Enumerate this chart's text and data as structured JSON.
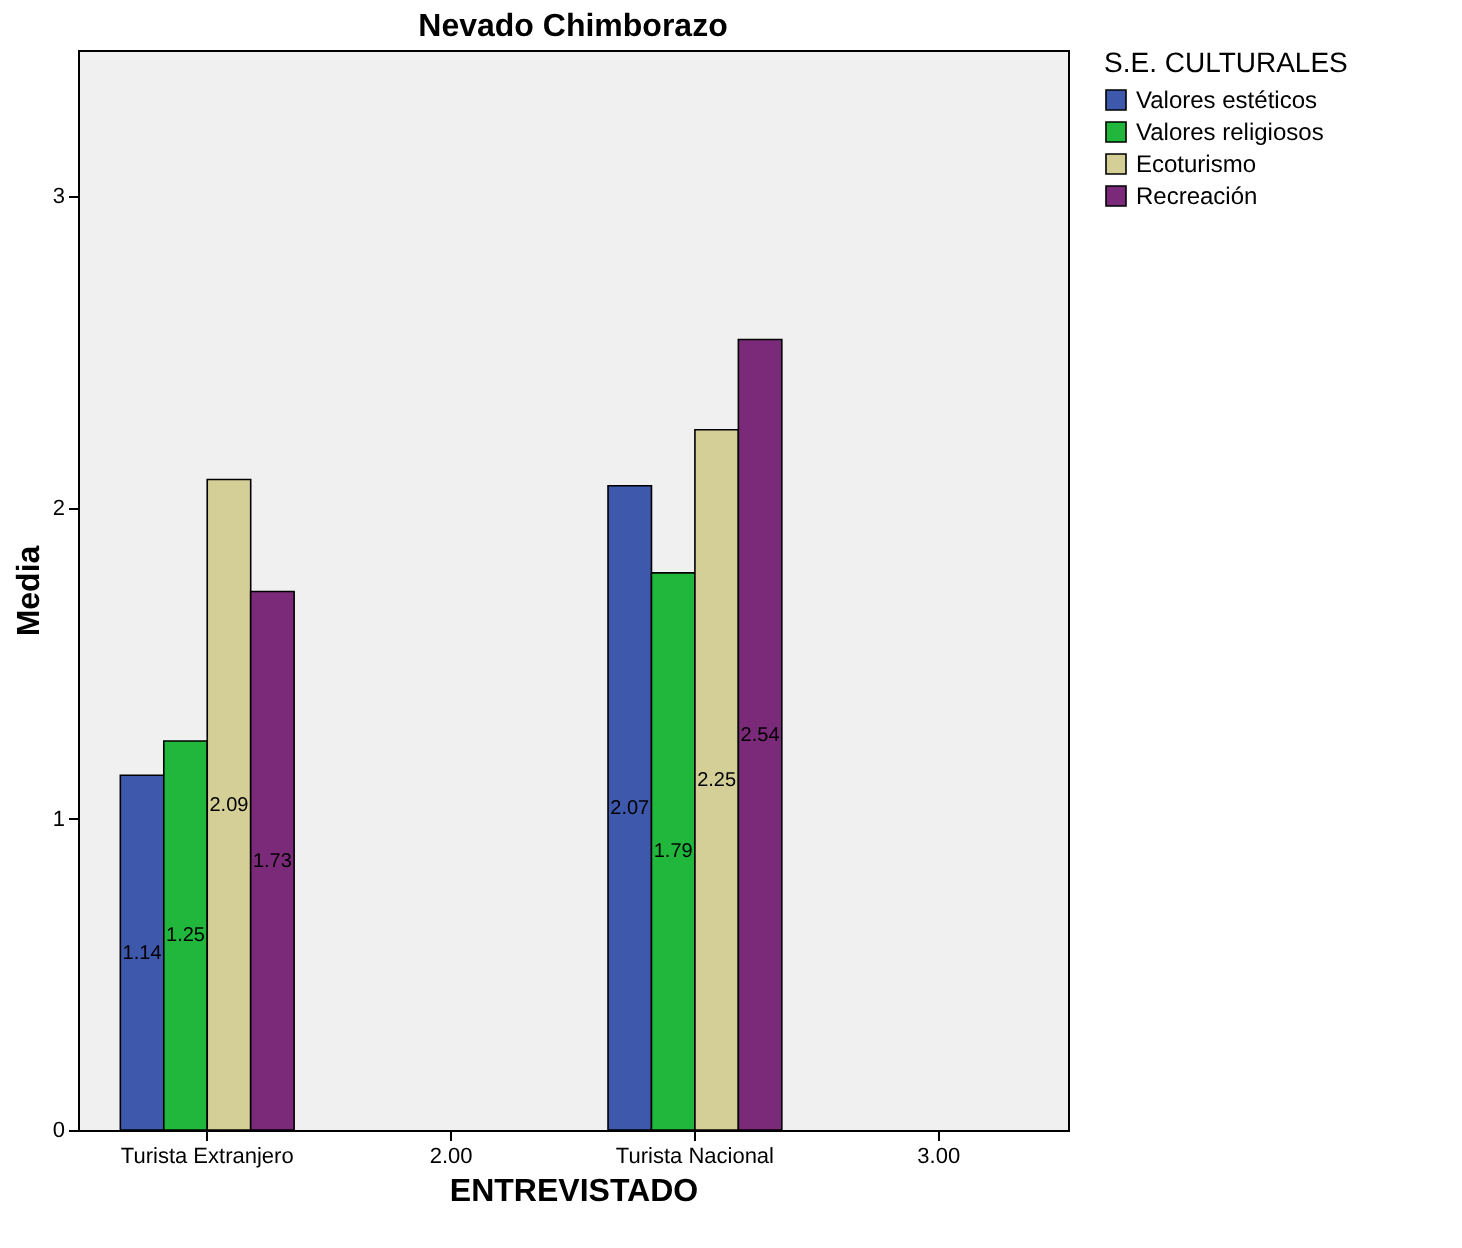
{
  "chart_data": {
    "type": "bar",
    "title": "Nevado Chimborazo",
    "xlabel": "ENTREVISTADO",
    "ylabel": "Media",
    "legend_title": "S.E. CULTURALES",
    "categories": [
      "Turista Extranjero",
      "2.00",
      "Turista Nacional",
      "3.00"
    ],
    "series": [
      {
        "name": "Valores estéticos",
        "color": "#3e58ac",
        "values": [
          1.14,
          null,
          2.07,
          null
        ]
      },
      {
        "name": "Valores religiosos",
        "color": "#21b73c",
        "values": [
          1.25,
          null,
          1.79,
          null
        ]
      },
      {
        "name": "Ecoturismo",
        "color": "#d4cf97",
        "values": [
          2.09,
          null,
          2.25,
          null
        ]
      },
      {
        "name": "Recreación",
        "color": "#7b2a7a",
        "values": [
          1.73,
          null,
          2.54,
          null
        ]
      }
    ],
    "ylim": [
      0,
      3.47
    ],
    "yticks": [
      0,
      1,
      2,
      3
    ],
    "grid": false,
    "legend": "top right",
    "data_labels": true
  }
}
